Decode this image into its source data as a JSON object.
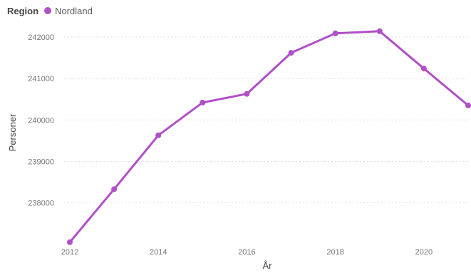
{
  "legend": {
    "title": "Region",
    "item": "Nordland"
  },
  "chart_data": {
    "type": "line",
    "xlabel": "År",
    "ylabel": "Personer",
    "x": [
      2012,
      2013,
      2014,
      2015,
      2016,
      2017,
      2018,
      2019,
      2020,
      2021
    ],
    "x_ticks": [
      "2012",
      "2014",
      "2016",
      "2018",
      "2020"
    ],
    "y_ticks": [
      "238000",
      "239000",
      "240000",
      "241000",
      "242000"
    ],
    "xlim": [
      2012,
      2021
    ],
    "ylim": [
      237030,
      242550
    ],
    "grid": true,
    "legend_position": "top-left",
    "series": [
      {
        "name": "Nordland",
        "color": "#b04fc7",
        "values": [
          237050,
          238330,
          239630,
          240420,
          240630,
          241620,
          242090,
          242140,
          241240,
          240350
        ]
      }
    ]
  }
}
